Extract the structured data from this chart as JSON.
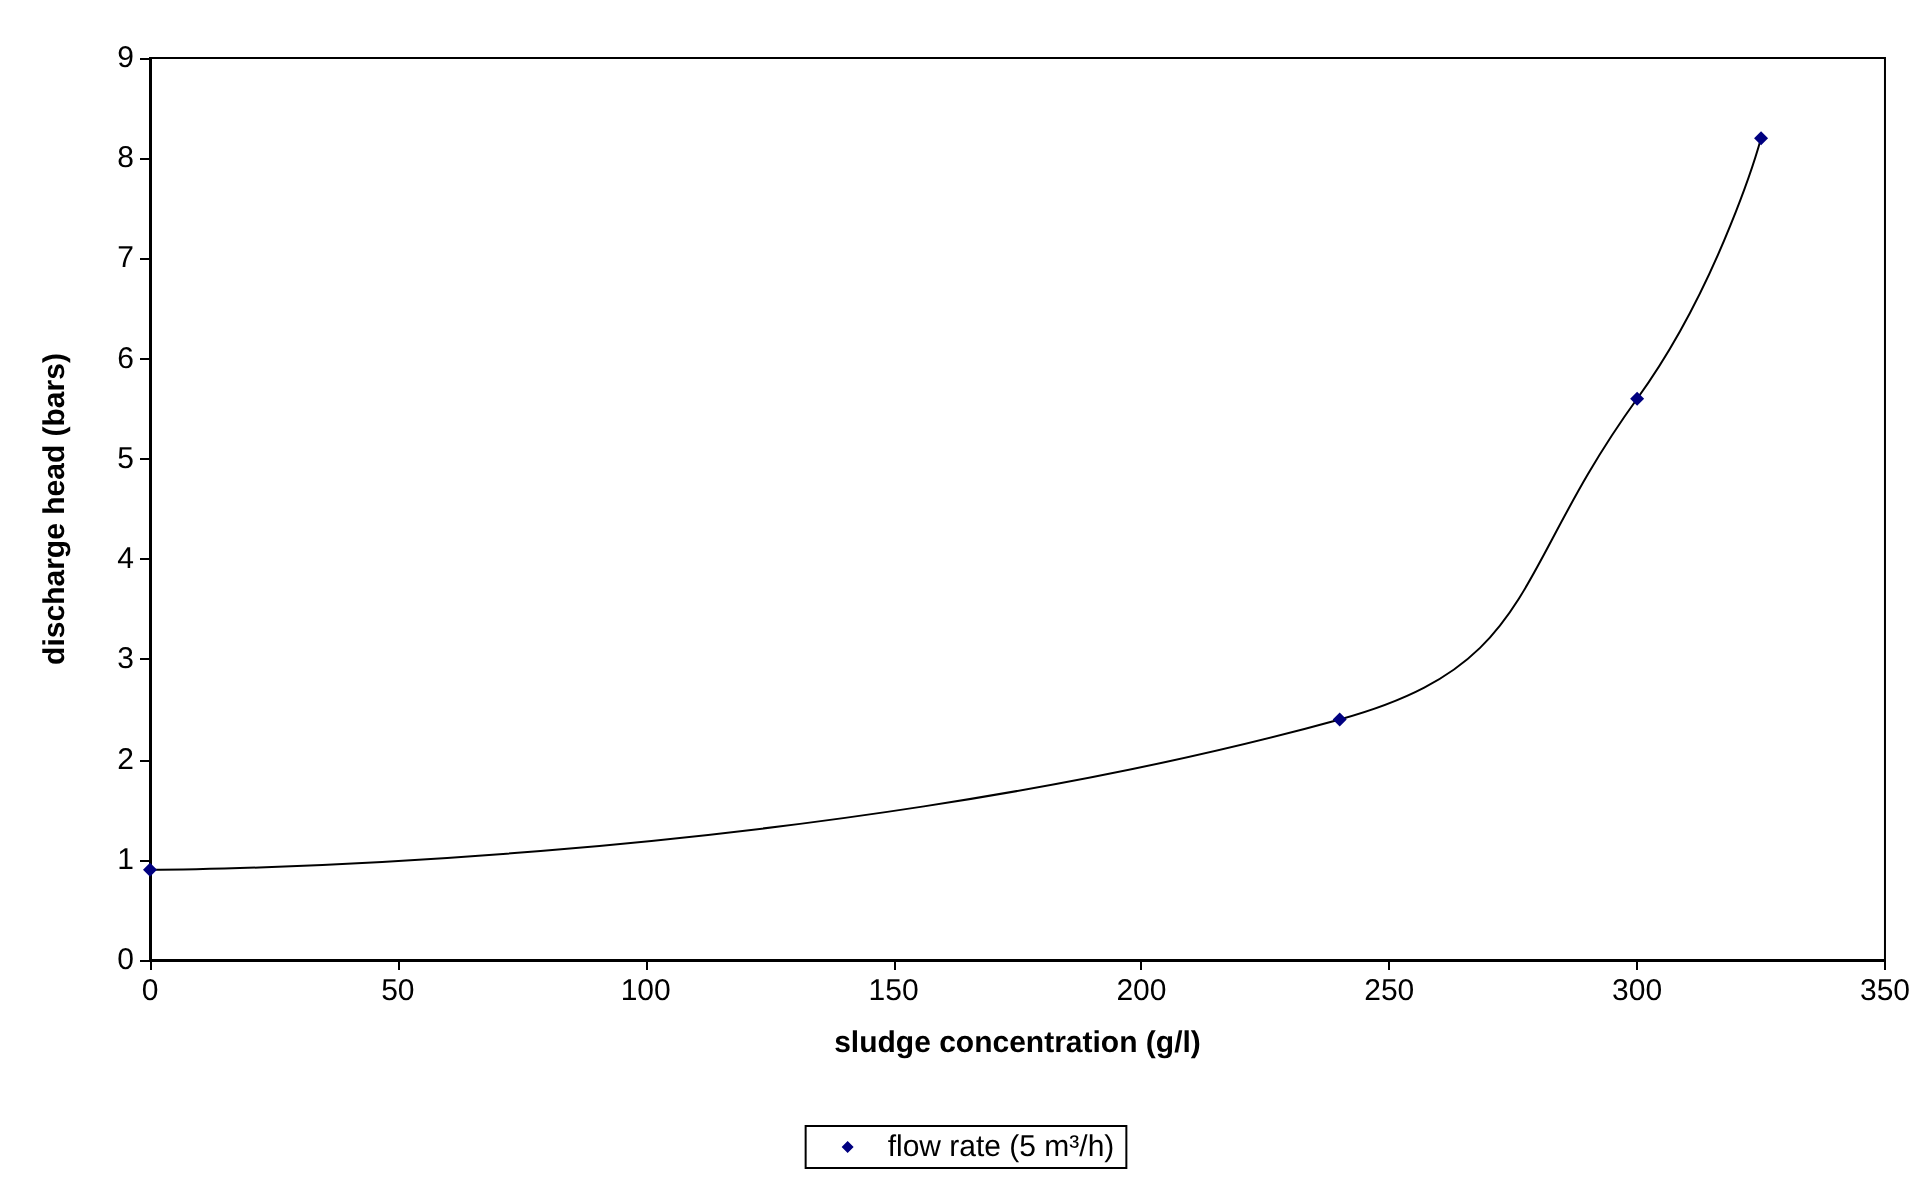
{
  "chart_data": {
    "type": "line",
    "xlabel": "sludge concentration (g/l)",
    "ylabel": "discharge head (bars)",
    "x": [
      0,
      240,
      300,
      325
    ],
    "series": [
      {
        "name": "flow rate (5 m³/h)",
        "color": "#000080",
        "values": [
          0.9,
          2.4,
          5.6,
          8.2
        ]
      }
    ],
    "xlim": [
      0,
      350
    ],
    "xticks": [
      0,
      50,
      100,
      150,
      200,
      250,
      300,
      350
    ],
    "ylim": [
      0,
      9
    ],
    "yticks": [
      0,
      1,
      2,
      3,
      4,
      5,
      6,
      7,
      8,
      9
    ],
    "grid": false,
    "legend": "bottom",
    "marker": "diamond",
    "line_style": "solid"
  }
}
